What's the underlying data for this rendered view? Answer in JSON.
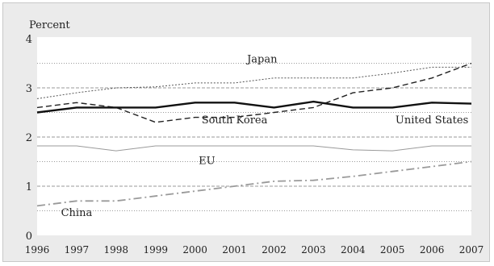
{
  "chart_data": {
    "type": "line",
    "ylabel": "Percent",
    "ylim": [
      0,
      4
    ],
    "yticks": [
      0,
      1,
      2,
      3,
      4
    ],
    "x": [
      1996,
      1997,
      1998,
      1999,
      2000,
      2001,
      2002,
      2003,
      2004,
      2005,
      2006,
      2007
    ],
    "xlim": [
      1996,
      2007
    ],
    "grid": true,
    "series": [
      {
        "name": "Japan",
        "style": "dotted",
        "color": "#555555",
        "values": [
          2.78,
          2.9,
          3.0,
          3.02,
          3.1,
          3.1,
          3.2,
          3.2,
          3.2,
          3.3,
          3.42,
          3.42
        ]
      },
      {
        "name": "South Korea",
        "style": "dashed",
        "color": "#222222",
        "values": [
          2.6,
          2.7,
          2.6,
          2.3,
          2.4,
          2.4,
          2.5,
          2.6,
          2.9,
          3.0,
          3.2,
          3.5
        ]
      },
      {
        "name": "United States",
        "style": "solid-thick",
        "color": "#111111",
        "values": [
          2.5,
          2.6,
          2.6,
          2.6,
          2.7,
          2.7,
          2.6,
          2.72,
          2.6,
          2.6,
          2.7,
          2.68
        ]
      },
      {
        "name": "EU",
        "style": "solid-thin",
        "color": "#9a9a9a",
        "values": [
          1.82,
          1.82,
          1.72,
          1.82,
          1.82,
          1.82,
          1.82,
          1.82,
          1.74,
          1.72,
          1.82,
          1.82
        ]
      },
      {
        "name": "China",
        "style": "dash-dot",
        "color": "#9a9a9a",
        "values": [
          0.6,
          0.7,
          0.7,
          0.8,
          0.9,
          1.0,
          1.1,
          1.12,
          1.2,
          1.3,
          1.4,
          1.5
        ]
      }
    ]
  }
}
